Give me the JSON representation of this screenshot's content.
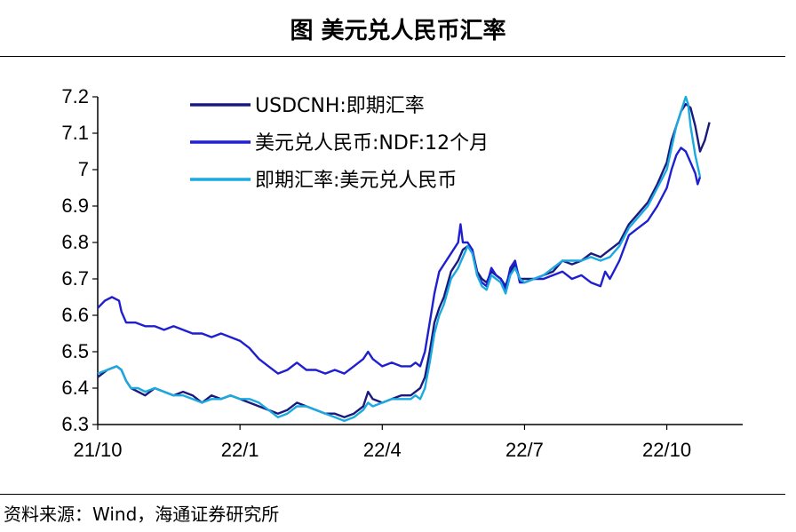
{
  "header": {
    "title": "图  美元兑人民币汇率"
  },
  "footer": {
    "source": "资料来源：Wind，海通证券研究所"
  },
  "chart_data": {
    "type": "line",
    "title": "图  美元兑人民币汇率",
    "xlabel": "",
    "ylabel": "",
    "ylim": [
      6.3,
      7.2
    ],
    "yticks": [
      "7.2",
      "7.1",
      "7",
      "6.9",
      "6.8",
      "6.7",
      "6.6",
      "6.5",
      "6.4",
      "6.3"
    ],
    "xticks": [
      "21/10",
      "22/1",
      "22/4",
      "22/7",
      "22/10"
    ],
    "xtick_months": [
      0,
      3,
      6,
      9,
      12
    ],
    "xlim_months": [
      0,
      13.6
    ],
    "grid": false,
    "legend_position": "top-left",
    "series": [
      {
        "name": "USDCNH:即期汇率",
        "color": "#1a1a7e",
        "points": [
          [
            0,
            6.43
          ],
          [
            0.2,
            6.45
          ],
          [
            0.4,
            6.46
          ],
          [
            0.5,
            6.45
          ],
          [
            0.6,
            6.42
          ],
          [
            0.7,
            6.4
          ],
          [
            0.85,
            6.39
          ],
          [
            1,
            6.38
          ],
          [
            1.2,
            6.4
          ],
          [
            1.4,
            6.39
          ],
          [
            1.6,
            6.38
          ],
          [
            1.8,
            6.39
          ],
          [
            2,
            6.38
          ],
          [
            2.2,
            6.36
          ],
          [
            2.4,
            6.38
          ],
          [
            2.6,
            6.37
          ],
          [
            2.8,
            6.38
          ],
          [
            3,
            6.37
          ],
          [
            3.2,
            6.36
          ],
          [
            3.4,
            6.35
          ],
          [
            3.6,
            6.34
          ],
          [
            3.8,
            6.33
          ],
          [
            4,
            6.34
          ],
          [
            4.2,
            6.36
          ],
          [
            4.4,
            6.35
          ],
          [
            4.6,
            6.34
          ],
          [
            4.8,
            6.33
          ],
          [
            5,
            6.33
          ],
          [
            5.2,
            6.32
          ],
          [
            5.4,
            6.33
          ],
          [
            5.6,
            6.35
          ],
          [
            5.7,
            6.39
          ],
          [
            5.8,
            6.37
          ],
          [
            6,
            6.36
          ],
          [
            6.2,
            6.37
          ],
          [
            6.4,
            6.38
          ],
          [
            6.6,
            6.38
          ],
          [
            6.7,
            6.39
          ],
          [
            6.8,
            6.4
          ],
          [
            6.9,
            6.43
          ],
          [
            7,
            6.5
          ],
          [
            7.1,
            6.58
          ],
          [
            7.2,
            6.62
          ],
          [
            7.3,
            6.65
          ],
          [
            7.45,
            6.72
          ],
          [
            7.6,
            6.75
          ],
          [
            7.7,
            6.78
          ],
          [
            7.8,
            6.79
          ],
          [
            7.9,
            6.78
          ],
          [
            8,
            6.72
          ],
          [
            8.1,
            6.7
          ],
          [
            8.2,
            6.69
          ],
          [
            8.3,
            6.72
          ],
          [
            8.4,
            6.71
          ],
          [
            8.5,
            6.7
          ],
          [
            8.6,
            6.68
          ],
          [
            8.7,
            6.72
          ],
          [
            8.8,
            6.74
          ],
          [
            8.9,
            6.7
          ],
          [
            9,
            6.7
          ],
          [
            9.2,
            6.7
          ],
          [
            9.4,
            6.71
          ],
          [
            9.6,
            6.72
          ],
          [
            9.8,
            6.75
          ],
          [
            10,
            6.74
          ],
          [
            10.2,
            6.75
          ],
          [
            10.4,
            6.77
          ],
          [
            10.6,
            6.76
          ],
          [
            10.8,
            6.78
          ],
          [
            11,
            6.8
          ],
          [
            11.2,
            6.85
          ],
          [
            11.4,
            6.88
          ],
          [
            11.6,
            6.91
          ],
          [
            11.8,
            6.96
          ],
          [
            12,
            7.02
          ],
          [
            12.1,
            7.08
          ],
          [
            12.2,
            7.12
          ],
          [
            12.3,
            7.16
          ],
          [
            12.4,
            7.18
          ],
          [
            12.5,
            7.17
          ],
          [
            12.6,
            7.12
          ],
          [
            12.7,
            7.05
          ],
          [
            12.8,
            7.08
          ],
          [
            12.9,
            7.13
          ]
        ]
      },
      {
        "name": "美元兑人民币:NDF:12个月",
        "color": "#1f1fd0",
        "points": [
          [
            0,
            6.62
          ],
          [
            0.15,
            6.64
          ],
          [
            0.3,
            6.65
          ],
          [
            0.45,
            6.64
          ],
          [
            0.5,
            6.61
          ],
          [
            0.6,
            6.58
          ],
          [
            0.8,
            6.58
          ],
          [
            1,
            6.57
          ],
          [
            1.2,
            6.57
          ],
          [
            1.4,
            6.56
          ],
          [
            1.6,
            6.57
          ],
          [
            1.8,
            6.56
          ],
          [
            2,
            6.55
          ],
          [
            2.2,
            6.55
          ],
          [
            2.4,
            6.54
          ],
          [
            2.6,
            6.55
          ],
          [
            2.8,
            6.54
          ],
          [
            3,
            6.53
          ],
          [
            3.2,
            6.51
          ],
          [
            3.4,
            6.48
          ],
          [
            3.6,
            6.46
          ],
          [
            3.8,
            6.44
          ],
          [
            4,
            6.45
          ],
          [
            4.2,
            6.47
          ],
          [
            4.4,
            6.45
          ],
          [
            4.6,
            6.45
          ],
          [
            4.8,
            6.44
          ],
          [
            5,
            6.45
          ],
          [
            5.2,
            6.44
          ],
          [
            5.4,
            6.46
          ],
          [
            5.6,
            6.48
          ],
          [
            5.7,
            6.5
          ],
          [
            5.8,
            6.48
          ],
          [
            6,
            6.46
          ],
          [
            6.2,
            6.47
          ],
          [
            6.4,
            6.46
          ],
          [
            6.6,
            6.46
          ],
          [
            6.7,
            6.47
          ],
          [
            6.8,
            6.46
          ],
          [
            6.9,
            6.5
          ],
          [
            7,
            6.58
          ],
          [
            7.1,
            6.66
          ],
          [
            7.2,
            6.72
          ],
          [
            7.3,
            6.74
          ],
          [
            7.45,
            6.77
          ],
          [
            7.6,
            6.8
          ],
          [
            7.65,
            6.85
          ],
          [
            7.7,
            6.8
          ],
          [
            7.8,
            6.8
          ],
          [
            7.9,
            6.78
          ],
          [
            8,
            6.71
          ],
          [
            8.1,
            6.69
          ],
          [
            8.2,
            6.68
          ],
          [
            8.3,
            6.73
          ],
          [
            8.4,
            6.71
          ],
          [
            8.5,
            6.7
          ],
          [
            8.6,
            6.67
          ],
          [
            8.7,
            6.73
          ],
          [
            8.8,
            6.75
          ],
          [
            8.9,
            6.69
          ],
          [
            9,
            6.69
          ],
          [
            9.2,
            6.7
          ],
          [
            9.4,
            6.7
          ],
          [
            9.6,
            6.71
          ],
          [
            9.8,
            6.72
          ],
          [
            10,
            6.7
          ],
          [
            10.2,
            6.71
          ],
          [
            10.4,
            6.69
          ],
          [
            10.6,
            6.68
          ],
          [
            10.7,
            6.72
          ],
          [
            10.8,
            6.7
          ],
          [
            11,
            6.75
          ],
          [
            11.2,
            6.82
          ],
          [
            11.4,
            6.84
          ],
          [
            11.6,
            6.86
          ],
          [
            11.8,
            6.9
          ],
          [
            12,
            6.95
          ],
          [
            12.1,
            7.0
          ],
          [
            12.2,
            7.04
          ],
          [
            12.3,
            7.06
          ],
          [
            12.4,
            7.05
          ],
          [
            12.5,
            7.02
          ],
          [
            12.6,
            6.99
          ],
          [
            12.65,
            6.96
          ],
          [
            12.7,
            6.98
          ]
        ]
      },
      {
        "name": "即期汇率:美元兑人民币",
        "color": "#1aaae0",
        "points": [
          [
            0,
            6.44
          ],
          [
            0.2,
            6.45
          ],
          [
            0.4,
            6.46
          ],
          [
            0.5,
            6.45
          ],
          [
            0.6,
            6.42
          ],
          [
            0.7,
            6.4
          ],
          [
            0.85,
            6.4
          ],
          [
            1,
            6.39
          ],
          [
            1.2,
            6.4
          ],
          [
            1.4,
            6.39
          ],
          [
            1.6,
            6.38
          ],
          [
            1.8,
            6.38
          ],
          [
            2,
            6.37
          ],
          [
            2.2,
            6.36
          ],
          [
            2.4,
            6.37
          ],
          [
            2.6,
            6.37
          ],
          [
            2.8,
            6.38
          ],
          [
            3,
            6.37
          ],
          [
            3.2,
            6.37
          ],
          [
            3.4,
            6.36
          ],
          [
            3.6,
            6.34
          ],
          [
            3.8,
            6.32
          ],
          [
            4,
            6.33
          ],
          [
            4.2,
            6.35
          ],
          [
            4.4,
            6.35
          ],
          [
            4.6,
            6.34
          ],
          [
            4.8,
            6.33
          ],
          [
            5,
            6.32
          ],
          [
            5.2,
            6.31
          ],
          [
            5.4,
            6.32
          ],
          [
            5.6,
            6.34
          ],
          [
            5.7,
            6.36
          ],
          [
            5.8,
            6.35
          ],
          [
            6,
            6.36
          ],
          [
            6.2,
            6.37
          ],
          [
            6.4,
            6.37
          ],
          [
            6.6,
            6.37
          ],
          [
            6.7,
            6.38
          ],
          [
            6.8,
            6.37
          ],
          [
            6.9,
            6.4
          ],
          [
            7,
            6.47
          ],
          [
            7.1,
            6.55
          ],
          [
            7.2,
            6.6
          ],
          [
            7.3,
            6.63
          ],
          [
            7.45,
            6.7
          ],
          [
            7.6,
            6.73
          ],
          [
            7.7,
            6.76
          ],
          [
            7.8,
            6.79
          ],
          [
            7.9,
            6.77
          ],
          [
            8,
            6.71
          ],
          [
            8.1,
            6.68
          ],
          [
            8.2,
            6.67
          ],
          [
            8.3,
            6.71
          ],
          [
            8.4,
            6.7
          ],
          [
            8.5,
            6.69
          ],
          [
            8.6,
            6.66
          ],
          [
            8.7,
            6.71
          ],
          [
            8.8,
            6.73
          ],
          [
            8.9,
            6.7
          ],
          [
            9,
            6.69
          ],
          [
            9.2,
            6.7
          ],
          [
            9.4,
            6.71
          ],
          [
            9.6,
            6.73
          ],
          [
            9.8,
            6.75
          ],
          [
            10,
            6.75
          ],
          [
            10.2,
            6.75
          ],
          [
            10.4,
            6.76
          ],
          [
            10.6,
            6.75
          ],
          [
            10.8,
            6.76
          ],
          [
            11,
            6.79
          ],
          [
            11.2,
            6.84
          ],
          [
            11.4,
            6.87
          ],
          [
            11.6,
            6.9
          ],
          [
            11.8,
            6.95
          ],
          [
            12,
            7.0
          ],
          [
            12.1,
            7.06
          ],
          [
            12.2,
            7.12
          ],
          [
            12.3,
            7.16
          ],
          [
            12.4,
            7.2
          ],
          [
            12.45,
            7.18
          ],
          [
            12.5,
            7.12
          ],
          [
            12.6,
            7.04
          ],
          [
            12.7,
            6.98
          ]
        ]
      }
    ]
  }
}
